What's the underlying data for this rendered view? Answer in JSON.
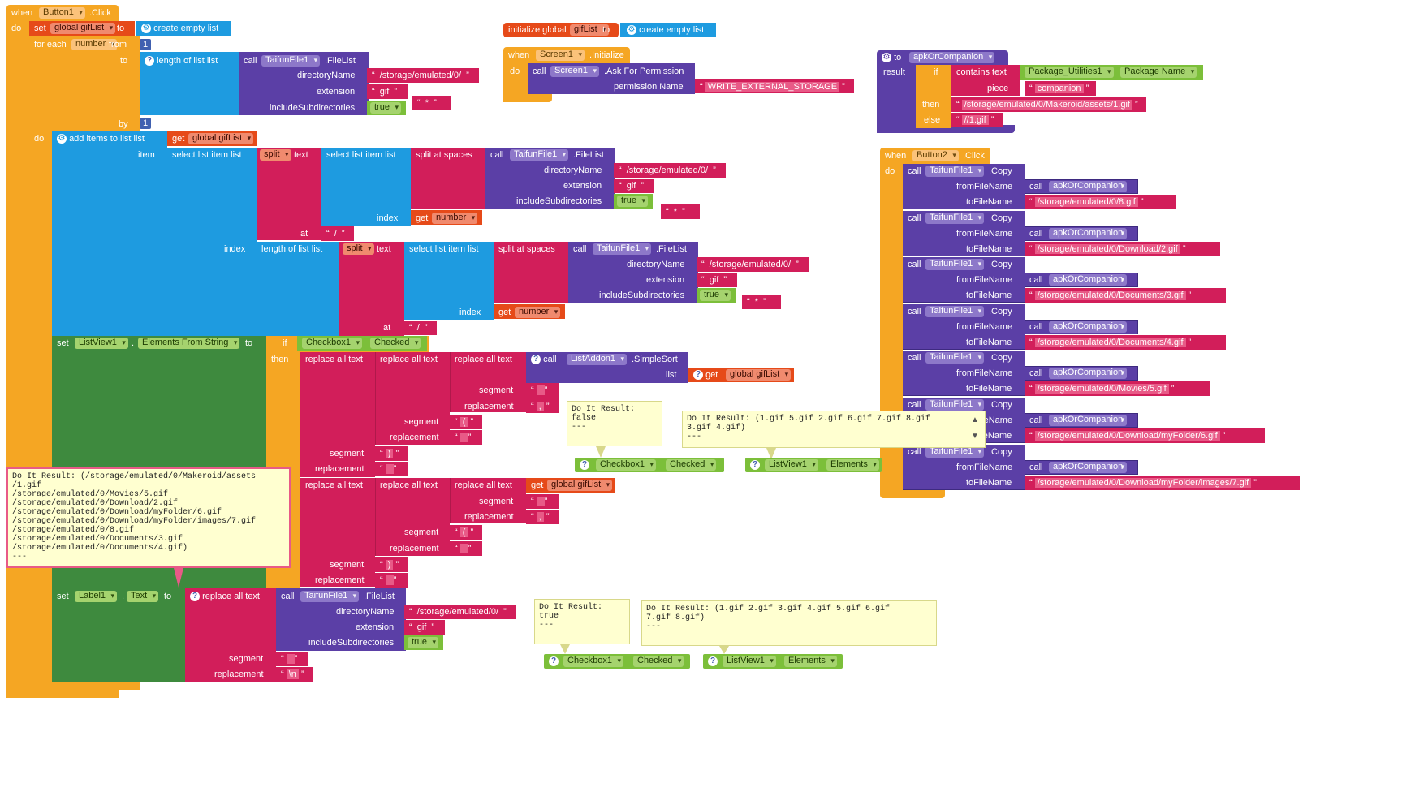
{
  "btn1": {
    "when": "when",
    "component": "Button1",
    "event": ".Click",
    "do": "do",
    "set": "set",
    "var": "global gifList",
    "to": "to",
    "create_empty_list": "create empty list",
    "for_each": "for each",
    "number": "number",
    "from": "from",
    "from_val": "1",
    "to_label": "to",
    "length_of_list": "length of list  list",
    "by": "by",
    "by_val": "1",
    "call": "call",
    "taifun": "TaifunFile1",
    "filelist": ".FileList",
    "directoryName": "directoryName",
    "extension": "extension",
    "includeSubdirectories": "includeSubdirectories",
    "dir_val": "/storage/emulated/0/",
    "ext_val": "gif",
    "true_val": "true",
    "star": "*",
    "do2": "do",
    "add_items": "add items to list  list",
    "get": "get",
    "get_var": "global gifList",
    "item": "item",
    "select_list_item": "select list item  list",
    "split": "split",
    "text": "text",
    "split_at_spaces": "split at spaces",
    "index": "index",
    "at": "at",
    "slash": "/",
    "set_listview": "set",
    "listview1": "ListView1",
    "elements_from_string": "Elements From String",
    "if": "if",
    "checkbox1": "Checkbox1",
    "checked": "Checked",
    "then": "then",
    "replace_all_text": "replace all text",
    "listaddon1": "ListAddon1",
    "simplesort": ".SimpleSort",
    "list": "list",
    "segment": "segment",
    "replacement": "replacement",
    "seg_bracket_open": "(",
    "seg_bracket_close": ")",
    "seg_comma": ",",
    "set_label": "set",
    "label1": "Label1",
    "text_prop": "Text",
    "newline": "\\n"
  },
  "init": {
    "initialize_global": "initialize global",
    "var": "gifList",
    "to": "to",
    "create_empty_list": "create empty list"
  },
  "screen": {
    "when": "when",
    "component": "Screen1",
    "event": ".Initialize",
    "do": "do",
    "call": "call",
    "method": ".Ask For Permission",
    "permission_name": "permission Name",
    "permission_val": "WRITE_EXTERNAL_STORAGE"
  },
  "proc": {
    "to": "to",
    "name": "apkOrCompanion",
    "result": "result",
    "if": "if",
    "contains_text": "contains  text",
    "package_util": "Package_Utilities1",
    "package_name": "Package Name",
    "piece": "piece",
    "piece_val": "companion",
    "then": "then",
    "then_val": "/storage/emulated/0/Makeroid/assets/1.gif",
    "else": "else",
    "else_val": "//1.gif"
  },
  "btn2": {
    "when": "when",
    "component": "Button2",
    "event": ".Click",
    "do": "do",
    "call": "call",
    "taifun": "TaifunFile1",
    "copy": ".Copy",
    "from_file": "fromFileName",
    "to_file": "toFileName",
    "apk": "apkOrCompanion",
    "copies": [
      "/storage/emulated/0/8.gif",
      "/storage/emulated/0/Download/2.gif",
      "/storage/emulated/0/Documents/3.gif",
      "/storage/emulated/0/Documents/4.gif",
      "/storage/emulated/0/Movies/5.gif",
      "/storage/emulated/0/Download/myFolder/6.gif",
      "/storage/emulated/0/Download/myFolder/images/7.gif"
    ]
  },
  "notes": {
    "n1": "Do It Result:\nfalse\n---",
    "n2": "Do It Result: (1.gif 5.gif 2.gif 6.gif 7.gif 8.gif\n3.gif 4.gif)\n---",
    "n3": "Do It Result: (/storage/emulated/0/Makeroid/assets\n/1.gif\n/storage/emulated/0/Movies/5.gif\n/storage/emulated/0/Download/2.gif\n/storage/emulated/0/Download/myFolder/6.gif\n/storage/emulated/0/Download/myFolder/images/7.gif\n/storage/emulated/0/8.gif\n/storage/emulated/0/Documents/3.gif\n/storage/emulated/0/Documents/4.gif)\n---",
    "n4": "Do It Result:\ntrue\n---",
    "n5": "Do It Result: (1.gif 2.gif 3.gif 4.gif 5.gif 6.gif\n7.gif 8.gif)\n---"
  },
  "getters": {
    "checkbox1": "Checkbox1",
    "checked": "Checked",
    "listview1": "ListView1",
    "elements": "Elements"
  },
  "colors": {
    "event": "#f5a623",
    "variable": "#e64a19",
    "list": "#1e9be0",
    "component": "#5b3fa6",
    "text": "#d21e5a",
    "control": "#f5a623",
    "logic": "#7cbf3a",
    "setter": "#3e8a3e"
  }
}
